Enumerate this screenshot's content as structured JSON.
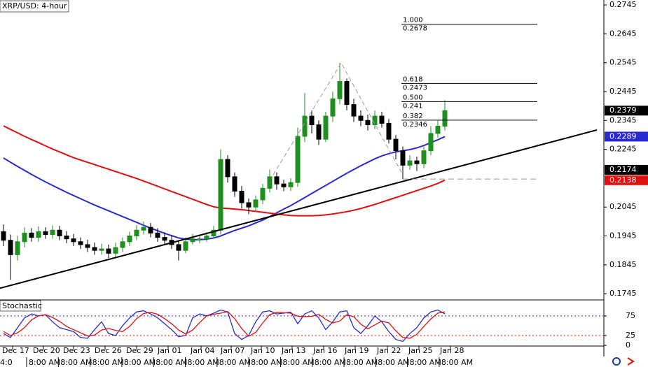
{
  "chart_data": [
    {
      "type": "candlestick",
      "title": "XRP/USD: 4-hour",
      "xlim": [
        -0.5,
        85.7
      ],
      "ylim": [
        0.1726,
        0.2762
      ],
      "yticks": [
        0.2745,
        0.2645,
        0.2545,
        0.2445,
        0.2345,
        0.2245,
        0.2045,
        0.1945,
        0.1845,
        0.1745
      ],
      "xticks": [
        {
          "value": 1.3,
          "label": "Dec 17"
        },
        {
          "value": 5.7,
          "label": "Dec 20"
        },
        {
          "value": 10,
          "label": "Dec 23"
        },
        {
          "value": 14.5,
          "label": "Dec 26"
        },
        {
          "value": 19,
          "label": "Dec 29"
        },
        {
          "value": 23.5,
          "label": "Jan 01"
        },
        {
          "value": 28.2,
          "label": "Jan 04"
        },
        {
          "value": 32.5,
          "label": "Jan 07"
        },
        {
          "value": 36.8,
          "label": "Jan 10"
        },
        {
          "value": 41.2,
          "label": "Jan 13"
        },
        {
          "value": 45.7,
          "label": "Jan 16"
        },
        {
          "value": 50.2,
          "label": "Jan 19"
        },
        {
          "value": 54.8,
          "label": "Jan 22"
        },
        {
          "value": 59.3,
          "label": "Jan 25"
        },
        {
          "value": 63.8,
          "label": "Jan 28"
        }
      ],
      "up_color": "#1f8f1f",
      "down_color": "#000000",
      "open": [
        0.196,
        0.193,
        0.188,
        0.1925,
        0.1955,
        0.194,
        0.196,
        0.195,
        0.1965,
        0.1945,
        0.1935,
        0.1925,
        0.1915,
        0.1905,
        0.1895,
        0.19,
        0.1885,
        0.1905,
        0.1925,
        0.1945,
        0.1965,
        0.1975,
        0.1955,
        0.194,
        0.193,
        0.1915,
        0.1895,
        0.1925,
        0.1935,
        0.1935,
        0.1945,
        0.1965,
        0.221,
        0.215,
        0.21,
        0.206,
        0.2045,
        0.207,
        0.211,
        0.215,
        0.2125,
        0.2115,
        0.213,
        0.229,
        0.236,
        0.233,
        0.228,
        0.236,
        0.242,
        0.248,
        0.24,
        0.236,
        0.2345,
        0.233,
        0.236,
        0.2335,
        0.228,
        0.224,
        0.219,
        0.2205,
        0.2195,
        0.224,
        0.23,
        0.2325
      ],
      "high": [
        0.1985,
        0.195,
        0.1945,
        0.1975,
        0.1972,
        0.1978,
        0.1975,
        0.1982,
        0.198,
        0.1962,
        0.1952,
        0.194,
        0.1932,
        0.1922,
        0.1918,
        0.1915,
        0.1922,
        0.194,
        0.196,
        0.1982,
        0.1995,
        0.199,
        0.1972,
        0.1958,
        0.1948,
        0.193,
        0.194,
        0.1952,
        0.195,
        0.1958,
        0.198,
        0.2245,
        0.2225,
        0.2165,
        0.2118,
        0.2075,
        0.2085,
        0.2125,
        0.2175,
        0.2165,
        0.214,
        0.2145,
        0.232,
        0.244,
        0.238,
        0.2345,
        0.2375,
        0.2445,
        0.2544,
        0.249,
        0.242,
        0.238,
        0.2365,
        0.238,
        0.2375,
        0.235,
        0.2295,
        0.2255,
        0.2225,
        0.222,
        0.2255,
        0.2325,
        0.2345,
        0.2415
      ],
      "low": [
        0.191,
        0.1793,
        0.186,
        0.1905,
        0.1925,
        0.1925,
        0.1935,
        0.1935,
        0.193,
        0.192,
        0.191,
        0.19,
        0.189,
        0.188,
        0.188,
        0.1868,
        0.187,
        0.189,
        0.191,
        0.193,
        0.195,
        0.194,
        0.1925,
        0.1915,
        0.19,
        0.186,
        0.1885,
        0.1915,
        0.192,
        0.1925,
        0.1935,
        0.195,
        0.213,
        0.208,
        0.204,
        0.202,
        0.203,
        0.2055,
        0.2095,
        0.2105,
        0.21,
        0.21,
        0.2115,
        0.227,
        0.23,
        0.226,
        0.227,
        0.234,
        0.24,
        0.238,
        0.234,
        0.2325,
        0.231,
        0.2315,
        0.232,
        0.2265,
        0.221,
        0.2142,
        0.2175,
        0.217,
        0.218,
        0.2225,
        0.2285,
        0.231
      ],
      "close": [
        0.193,
        0.188,
        0.1925,
        0.1955,
        0.194,
        0.196,
        0.195,
        0.1965,
        0.1945,
        0.1935,
        0.1925,
        0.1915,
        0.1905,
        0.1895,
        0.19,
        0.1885,
        0.1905,
        0.1925,
        0.1945,
        0.1965,
        0.1975,
        0.1955,
        0.194,
        0.193,
        0.1915,
        0.1895,
        0.1925,
        0.1935,
        0.1935,
        0.1945,
        0.1965,
        0.221,
        0.215,
        0.21,
        0.206,
        0.2045,
        0.207,
        0.211,
        0.215,
        0.2125,
        0.2115,
        0.213,
        0.229,
        0.236,
        0.233,
        0.228,
        0.236,
        0.242,
        0.248,
        0.24,
        0.236,
        0.2345,
        0.233,
        0.236,
        0.2335,
        0.228,
        0.224,
        0.219,
        0.2205,
        0.2195,
        0.224,
        0.23,
        0.2325,
        0.2379
      ],
      "series": [
        {
          "color": "#2a2ad0",
          "values": [
            0.2215,
            0.22,
            0.2186,
            0.2172,
            0.2158,
            0.2145,
            0.2132,
            0.212,
            0.2108,
            0.2096,
            0.2085,
            0.2074,
            0.2063,
            0.2052,
            0.2042,
            0.2032,
            0.2022,
            0.2012,
            0.2002,
            0.1992,
            0.1982,
            0.1972,
            0.1963,
            0.1954,
            0.1946,
            0.1938,
            0.1934,
            0.1932,
            0.1932,
            0.1934,
            0.1938,
            0.1945,
            0.1955,
            0.1964,
            0.1972,
            0.198,
            0.199,
            0.2,
            0.2012,
            0.2025,
            0.2038,
            0.205,
            0.2064,
            0.2078,
            0.2092,
            0.2106,
            0.212,
            0.2134,
            0.2148,
            0.2162,
            0.2175,
            0.2188,
            0.22,
            0.2212,
            0.2222,
            0.223,
            0.2236,
            0.224,
            0.2244,
            0.225,
            0.2258,
            0.2268,
            0.2278,
            0.2289
          ]
        },
        {
          "color": "#e01010",
          "values": [
            0.2326,
            0.2314,
            0.2302,
            0.229,
            0.2279,
            0.2268,
            0.2257,
            0.2246,
            0.2236,
            0.2226,
            0.2216,
            0.2208,
            0.22,
            0.2192,
            0.2184,
            0.2176,
            0.2168,
            0.216,
            0.2152,
            0.2144,
            0.2135,
            0.2126,
            0.2117,
            0.2108,
            0.2099,
            0.209,
            0.2081,
            0.2072,
            0.2063,
            0.2054,
            0.2046,
            0.2042,
            0.204,
            0.2038,
            0.2036,
            0.2033,
            0.203,
            0.2027,
            0.2024,
            0.2021,
            0.2018,
            0.2016,
            0.2015,
            0.2015,
            0.2015,
            0.2016,
            0.2018,
            0.2021,
            0.2025,
            0.2029,
            0.2034,
            0.204,
            0.2047,
            0.2054,
            0.2062,
            0.207,
            0.2078,
            0.2086,
            0.2094,
            0.2102,
            0.211,
            0.2118,
            0.2127,
            0.2138
          ]
        }
      ],
      "trendline": {
        "x": [
          -0.5,
          84.7
        ],
        "values": [
          0.1764,
          0.2312
        ],
        "color": "#000000"
      },
      "zigzag": {
        "x": [
          38.5,
          48.2,
          57
        ],
        "values": [
          0.2157,
          0.2544,
          0.2157
        ],
        "color": "#999999"
      },
      "support_line": {
        "x": [
          57,
          76
        ],
        "value": 0.2142,
        "color": "#999999"
      },
      "fib_levels": [
        {
          "ratio": "1.000",
          "value": 0.2678
        },
        {
          "ratio": "0.618",
          "value": 0.2473
        },
        {
          "ratio": "0.500",
          "value": 0.241
        },
        {
          "ratio": "0.382",
          "value": 0.2346
        }
      ],
      "fib_x": [
        56.8,
        76.2
      ],
      "price_badges": [
        {
          "value": 0.2379,
          "color": "#000000"
        },
        {
          "value": 0.2289,
          "color": "#2a2ad0"
        },
        {
          "value": 0.2174,
          "color": "#000000"
        },
        {
          "value": 0.2138,
          "color": "#e01010"
        }
      ],
      "time_labels": [
        "4:0",
        "8:00 AM",
        "8:00 AM",
        "8:00 AM",
        "8:00 AM",
        "8:00 AM",
        "8:00 AM",
        "8:00 AM",
        "8:00 AM",
        "8:00 AM",
        "8:00 AM",
        "8:00 AM",
        "8:00 AM",
        "8:00 AM",
        "8:00 AM"
      ]
    },
    {
      "type": "oscillator",
      "title": "Stochastic",
      "ylim": [
        0,
        114
      ],
      "yticks": [
        75,
        25,
        0
      ],
      "levels": [
        {
          "value": 75,
          "color": "#2a2ad0"
        },
        {
          "value": 25,
          "color": "#e01010"
        }
      ],
      "series": [
        {
          "color": "#2a2ad0",
          "values": [
            30,
            20,
            45,
            70,
            80,
            75,
            78,
            60,
            45,
            40,
            35,
            20,
            18,
            40,
            60,
            30,
            25,
            50,
            70,
            85,
            88,
            80,
            70,
            55,
            40,
            22,
            25,
            70,
            80,
            75,
            82,
            90,
            85,
            30,
            15,
            25,
            60,
            85,
            88,
            80,
            82,
            85,
            55,
            80,
            88,
            70,
            40,
            60,
            85,
            88,
            45,
            30,
            50,
            75,
            60,
            35,
            15,
            10,
            30,
            45,
            70,
            85,
            90,
            80
          ]
        },
        {
          "color": "#e01010",
          "values": [
            35,
            25,
            32,
            45,
            65,
            75,
            78,
            71,
            61,
            48,
            40,
            32,
            24,
            26,
            39,
            43,
            38,
            35,
            48,
            68,
            81,
            84,
            79,
            68,
            55,
            39,
            29,
            39,
            58,
            75,
            79,
            82,
            86,
            68,
            43,
            23,
            33,
            57,
            78,
            84,
            83,
            82,
            74,
            73,
            74,
            79,
            66,
            57,
            62,
            78,
            73,
            54,
            42,
            52,
            62,
            57,
            37,
            20,
            18,
            28,
            48,
            67,
            82,
            85
          ]
        }
      ]
    }
  ]
}
